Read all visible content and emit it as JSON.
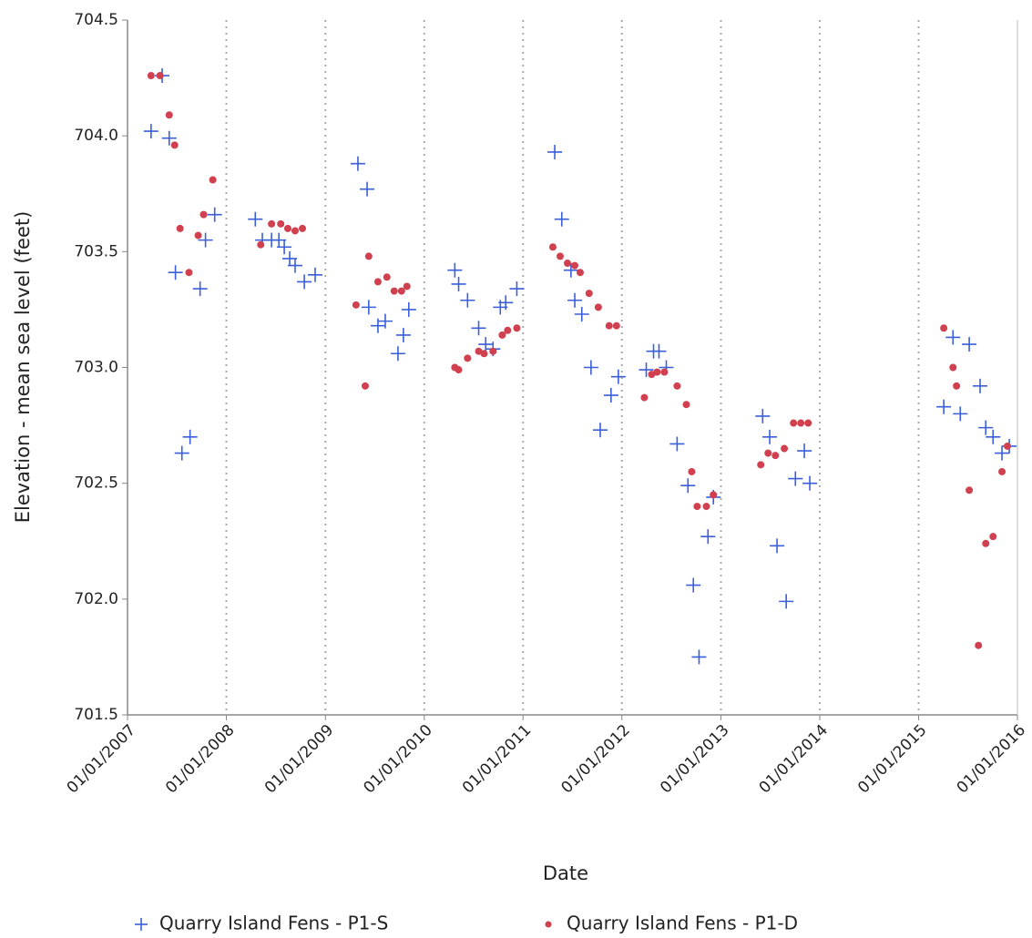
{
  "chart_data": {
    "type": "scatter",
    "x_label": "Date",
    "y_label": "Elevation - mean sea level (feet)",
    "xlim": [
      "2007-01-01",
      "2016-01-01"
    ],
    "xticks": [
      {
        "value": "2007-01-01",
        "label": "01/01/2007"
      },
      {
        "value": "2008-01-01",
        "label": "01/01/2008"
      },
      {
        "value": "2009-01-01",
        "label": "01/01/2009"
      },
      {
        "value": "2010-01-01",
        "label": "01/01/2010"
      },
      {
        "value": "2011-01-01",
        "label": "01/01/2011"
      },
      {
        "value": "2012-01-01",
        "label": "01/01/2012"
      },
      {
        "value": "2013-01-01",
        "label": "01/01/2013"
      },
      {
        "value": "2014-01-01",
        "label": "01/01/2014"
      },
      {
        "value": "2015-01-01",
        "label": "01/01/2015"
      },
      {
        "value": "2016-01-01",
        "label": "01/01/2016"
      }
    ],
    "ylim": [
      701.5,
      704.5
    ],
    "yticks": [
      701.5,
      {
        "value": 702,
        "label": "702.0"
      },
      702.5,
      {
        "value": 703,
        "label": "703.0"
      },
      703.5,
      {
        "value": 704,
        "label": "704.0"
      },
      704.5
    ],
    "x_grid": true,
    "series": [
      {
        "name": "Quarry Island Fens - P1-S",
        "color": "#3a5fd9",
        "marker": "plus",
        "x": [
          "2007-03-29",
          "2007-05-09",
          "2007-06-04",
          "2007-06-27",
          "2007-07-21",
          "2007-08-20",
          "2007-09-26",
          "2007-10-16",
          "2007-11-19",
          "2008-04-17",
          "2008-05-13",
          "2008-06-16",
          "2008-07-13",
          "2008-08-02",
          "2008-08-22",
          "2008-09-11",
          "2008-10-15",
          "2008-11-24",
          "2009-05-01",
          "2009-06-04",
          "2009-06-10",
          "2009-07-14",
          "2009-08-10",
          "2009-09-26",
          "2009-10-16",
          "2009-11-05",
          "2010-04-24",
          "2010-05-08",
          "2010-06-10",
          "2010-07-21",
          "2010-08-16",
          "2010-09-12",
          "2010-10-09",
          "2010-10-29",
          "2010-12-09",
          "2011-04-28",
          "2011-05-24",
          "2011-06-27",
          "2011-07-11",
          "2011-08-06",
          "2011-09-09",
          "2011-10-13",
          "2011-11-22",
          "2011-12-19",
          "2012-03-31",
          "2012-04-27",
          "2012-05-17",
          "2012-06-13",
          "2012-07-23",
          "2012-09-01",
          "2012-09-21",
          "2012-10-12",
          "2012-11-14",
          "2012-12-04",
          "2013-06-04",
          "2013-06-30",
          "2013-07-27",
          "2013-08-30",
          "2013-10-03",
          "2013-11-05",
          "2013-11-25",
          "2015-04-04",
          "2015-05-08",
          "2015-06-04",
          "2015-07-07",
          "2015-08-16",
          "2015-09-06",
          "2015-10-03",
          "2015-11-05",
          "2015-12-02"
        ],
        "values": [
          704.02,
          704.26,
          703.99,
          703.41,
          702.63,
          702.7,
          703.34,
          703.55,
          703.66,
          703.64,
          703.55,
          703.55,
          703.55,
          703.52,
          703.47,
          703.44,
          703.37,
          703.4,
          703.88,
          703.77,
          703.26,
          703.18,
          703.2,
          703.06,
          703.14,
          703.25,
          703.42,
          703.36,
          703.29,
          703.17,
          703.1,
          703.08,
          703.26,
          703.28,
          703.34,
          703.93,
          703.64,
          703.42,
          703.29,
          703.23,
          703.0,
          702.73,
          702.88,
          702.96,
          702.99,
          703.07,
          703.07,
          703.0,
          702.67,
          702.49,
          702.06,
          701.75,
          702.27,
          702.44,
          702.79,
          702.7,
          702.23,
          701.99,
          702.52,
          702.64,
          702.5,
          702.83,
          703.13,
          702.8,
          703.1,
          702.92,
          702.74,
          702.7,
          702.63,
          702.66
        ]
      },
      {
        "name": "Quarry Island Fens - P1-D",
        "color": "#d0404f",
        "marker": "dot",
        "x": [
          "2007-03-29",
          "2007-05-01",
          "2007-06-04",
          "2007-06-24",
          "2007-07-14",
          "2007-08-16",
          "2007-09-19",
          "2007-10-09",
          "2007-11-12",
          "2008-05-07",
          "2008-06-16",
          "2008-07-20",
          "2008-08-15",
          "2008-09-11",
          "2008-10-08",
          "2009-04-24",
          "2009-05-28",
          "2009-06-10",
          "2009-07-14",
          "2009-08-16",
          "2009-09-12",
          "2009-10-09",
          "2009-10-29",
          "2010-04-24",
          "2010-05-08",
          "2010-06-10",
          "2010-07-21",
          "2010-08-10",
          "2010-09-12",
          "2010-10-16",
          "2010-11-05",
          "2010-12-09",
          "2011-04-21",
          "2011-05-18",
          "2011-06-14",
          "2011-07-11",
          "2011-07-31",
          "2011-09-02",
          "2011-10-06",
          "2011-11-15",
          "2011-12-12",
          "2012-03-24",
          "2012-04-20",
          "2012-05-10",
          "2012-06-06",
          "2012-07-23",
          "2012-08-26",
          "2012-09-15",
          "2012-10-05",
          "2012-11-08",
          "2012-12-04",
          "2013-05-28",
          "2013-06-24",
          "2013-07-21",
          "2013-08-23",
          "2013-09-26",
          "2013-10-23",
          "2013-11-19",
          "2015-04-04",
          "2015-05-08",
          "2015-05-21",
          "2015-07-07",
          "2015-08-10",
          "2015-09-06",
          "2015-10-03",
          "2015-11-05",
          "2015-11-25"
        ],
        "values": [
          704.26,
          704.26,
          704.09,
          703.96,
          703.6,
          703.41,
          703.57,
          703.66,
          703.81,
          703.53,
          703.62,
          703.62,
          703.6,
          703.59,
          703.6,
          703.27,
          702.92,
          703.48,
          703.37,
          703.39,
          703.33,
          703.33,
          703.35,
          703.0,
          702.99,
          703.04,
          703.07,
          703.06,
          703.07,
          703.14,
          703.16,
          703.17,
          703.52,
          703.48,
          703.45,
          703.44,
          703.41,
          703.32,
          703.26,
          703.18,
          703.18,
          702.87,
          702.97,
          702.98,
          702.98,
          702.92,
          702.84,
          702.55,
          702.4,
          702.4,
          702.45,
          702.58,
          702.63,
          702.62,
          702.65,
          702.76,
          702.76,
          702.76,
          703.17,
          703.0,
          702.92,
          702.47,
          701.8,
          702.24,
          702.27,
          702.55,
          702.66
        ]
      }
    ]
  }
}
